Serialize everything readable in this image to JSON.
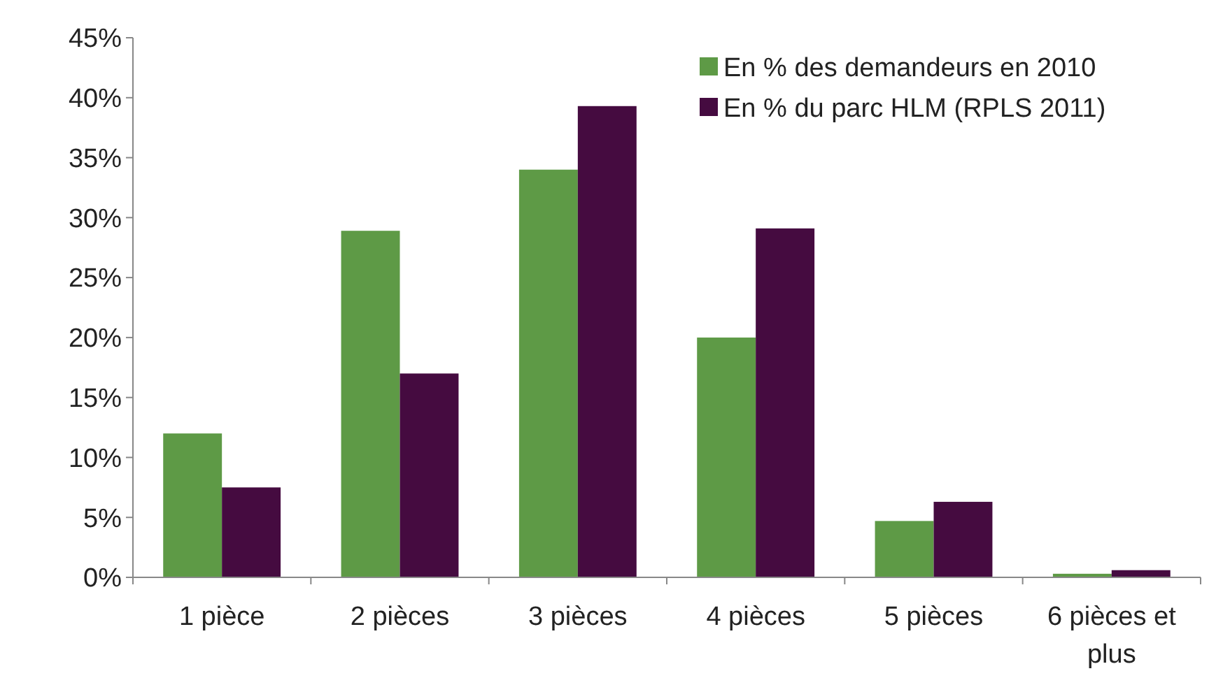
{
  "chart_data": {
    "type": "bar",
    "categories": [
      "1 pièce",
      "2 pièces",
      "3 pièces",
      "4 pièces",
      "5 pièces",
      "6 pièces et plus"
    ],
    "series": [
      {
        "name": "En % des demandeurs en 2010",
        "color": "#5e9a46",
        "values": [
          12,
          28.9,
          34,
          20,
          4.7,
          0.3
        ]
      },
      {
        "name": "En % du parc HLM (RPLS 2011)",
        "color": "#450b40",
        "values": [
          7.5,
          17,
          39.3,
          29.1,
          6.3,
          0.6
        ]
      }
    ],
    "ylim": [
      0,
      45
    ],
    "yticks": [
      {
        "value": 0,
        "label": "0%"
      },
      {
        "value": 5,
        "label": "5%"
      },
      {
        "value": 10,
        "label": "10%"
      },
      {
        "value": 15,
        "label": "15%"
      },
      {
        "value": 20,
        "label": "20%"
      },
      {
        "value": 25,
        "label": "25%"
      },
      {
        "value": 30,
        "label": "30%"
      },
      {
        "value": 35,
        "label": "35%"
      },
      {
        "value": 40,
        "label": "40%"
      },
      {
        "value": 45,
        "label": "45%"
      }
    ],
    "grid": false,
    "legend": "top right"
  }
}
